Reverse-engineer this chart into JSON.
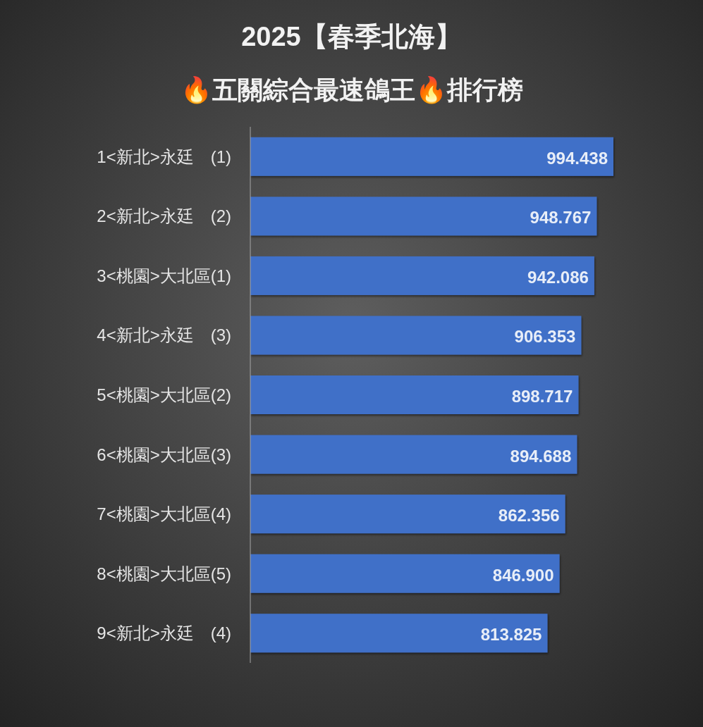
{
  "chart_data": {
    "type": "bar",
    "orientation": "horizontal",
    "title": "2025【春季北海】",
    "subtitle": "🔥五關綜合最速鴿王🔥排行榜",
    "categories": [
      "1<新北>永廷　(1)",
      "2<新北>永廷　(2)",
      "3<桃園>大北區(1)",
      "4<新北>永廷　(3)",
      "5<桃園>大北區(2)",
      "6<桃園>大北區(3)",
      "7<桃園>大北區(4)",
      "8<桃園>大北區(5)",
      "9<新北>永廷　(4)"
    ],
    "values": [
      994.438,
      948.767,
      942.086,
      906.353,
      898.717,
      894.688,
      862.356,
      846.9,
      813.825
    ],
    "value_labels": [
      "994.438",
      "948.767",
      "942.086",
      "906.353",
      "898.717",
      "894.688",
      "862.356",
      "846.900",
      "813.825"
    ],
    "color": "#4070c8",
    "tick_labels": "y"
  }
}
